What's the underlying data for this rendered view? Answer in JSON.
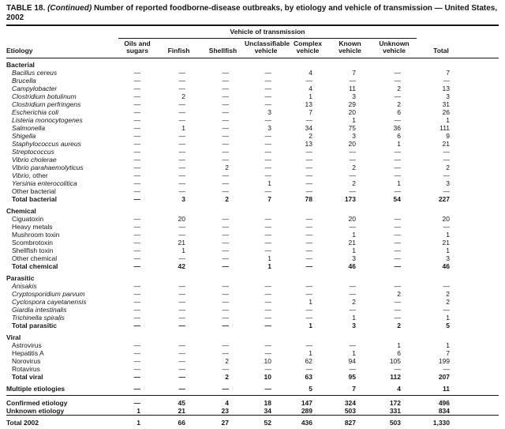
{
  "colors": {
    "text": "#161616",
    "background": "#ffffff",
    "rule": "#161616"
  },
  "title": {
    "part1": "TABLE 18.",
    "continued": "(Continued)",
    "part2": "Number of reported foodborne-disease outbreaks, by etiology and vehicle of transmission — United States, 2002"
  },
  "header": {
    "etiology": "Etiology",
    "spanner": "Vehicle of transmission",
    "columns": [
      "Oils and sugars",
      "Finfish",
      "Shellfish",
      "Unclassifiable vehicle",
      "Complex vehicle",
      "Known vehicle",
      "Unknown vehicle"
    ],
    "total": "Total"
  },
  "table": {
    "rows": [
      {
        "type": "section",
        "text": "Bacterial"
      },
      {
        "type": "item",
        "italic": "Bacillus cereus",
        "values": [
          "—",
          "—",
          "—",
          "—",
          "4",
          "7",
          "—",
          "7"
        ]
      },
      {
        "type": "item",
        "italic": "Brucella",
        "values": [
          "—",
          "—",
          "—",
          "—",
          "—",
          "—",
          "—",
          "—"
        ]
      },
      {
        "type": "item",
        "italic": "Campylobacter",
        "values": [
          "—",
          "—",
          "—",
          "—",
          "4",
          "11",
          "2",
          "13"
        ]
      },
      {
        "type": "item",
        "italic": "Clostridium botulinum",
        "values": [
          "—",
          "2",
          "—",
          "—",
          "1",
          "3",
          "—",
          "3"
        ]
      },
      {
        "type": "item",
        "italic": "Clostridium perfringens",
        "values": [
          "—",
          "—",
          "—",
          "—",
          "13",
          "29",
          "2",
          "31"
        ]
      },
      {
        "type": "item",
        "italic": "Escherichia coli",
        "values": [
          "—",
          "—",
          "—",
          "3",
          "7",
          "20",
          "6",
          "26"
        ]
      },
      {
        "type": "item",
        "italic": "Listeria monocytogenes",
        "values": [
          "—",
          "—",
          "—",
          "—",
          "—",
          "1",
          "—",
          "1"
        ]
      },
      {
        "type": "item",
        "italic": "Salmonella",
        "values": [
          "—",
          "1",
          "—",
          "3",
          "34",
          "75",
          "36",
          "111"
        ]
      },
      {
        "type": "item",
        "italic": "Shigella",
        "values": [
          "—",
          "—",
          "—",
          "—",
          "2",
          "3",
          "6",
          "9"
        ]
      },
      {
        "type": "item",
        "italic": "Staphylococcus aureus",
        "values": [
          "—",
          "—",
          "—",
          "—",
          "13",
          "20",
          "1",
          "21"
        ]
      },
      {
        "type": "item",
        "italic": "Streptococcus",
        "values": [
          "—",
          "—",
          "—",
          "—",
          "—",
          "—",
          "—",
          "—"
        ]
      },
      {
        "type": "item",
        "italic": "Vibrio cholerae",
        "values": [
          "—",
          "—",
          "—",
          "—",
          "—",
          "—",
          "—",
          "—"
        ]
      },
      {
        "type": "item",
        "italic": "Vibrio parahaemolyticus",
        "values": [
          "—",
          "—",
          "2",
          "—",
          "—",
          "2",
          "—",
          "2"
        ]
      },
      {
        "type": "item",
        "italic": "Vibrio",
        "text": ", other",
        "values": [
          "—",
          "—",
          "—",
          "—",
          "—",
          "—",
          "—",
          "—"
        ]
      },
      {
        "type": "item",
        "italic": "Yersinia enterocolitica",
        "values": [
          "—",
          "—",
          "—",
          "1",
          "—",
          "2",
          "1",
          "3"
        ]
      },
      {
        "type": "item",
        "text": "Other bacterial",
        "values": [
          "—",
          "—",
          "—",
          "—",
          "—",
          "—",
          "—",
          "—"
        ]
      },
      {
        "type": "total",
        "text": "Total bacterial",
        "values": [
          "—",
          "3",
          "2",
          "7",
          "78",
          "173",
          "54",
          "227"
        ]
      },
      {
        "type": "section",
        "text": "Chemical",
        "gap_before": true
      },
      {
        "type": "item",
        "text": "Ciguatoxin",
        "values": [
          "—",
          "20",
          "—",
          "—",
          "—",
          "20",
          "—",
          "20"
        ]
      },
      {
        "type": "item",
        "text": "Heavy metals",
        "values": [
          "—",
          "—",
          "—",
          "—",
          "—",
          "—",
          "—",
          "—"
        ]
      },
      {
        "type": "item",
        "text": "Mushroom toxin",
        "values": [
          "—",
          "—",
          "—",
          "—",
          "—",
          "1",
          "—",
          "1"
        ]
      },
      {
        "type": "item",
        "text": "Scombrotoxin",
        "values": [
          "—",
          "21",
          "—",
          "—",
          "—",
          "21",
          "—",
          "21"
        ]
      },
      {
        "type": "item",
        "text": "Shellfish toxin",
        "values": [
          "—",
          "1",
          "—",
          "—",
          "—",
          "1",
          "—",
          "1"
        ]
      },
      {
        "type": "item",
        "text": "Other chemical",
        "values": [
          "—",
          "—",
          "—",
          "1",
          "—",
          "3",
          "—",
          "3"
        ]
      },
      {
        "type": "total",
        "text": "Total chemical",
        "values": [
          "—",
          "42",
          "—",
          "1",
          "—",
          "46",
          "—",
          "46"
        ]
      },
      {
        "type": "section",
        "text": "Parasitic",
        "gap_before": true
      },
      {
        "type": "item",
        "italic": "Anisakis",
        "values": [
          "—",
          "—",
          "—",
          "—",
          "—",
          "—",
          "—",
          "—"
        ]
      },
      {
        "type": "item",
        "italic": "Cryptosporidium parvum",
        "values": [
          "—",
          "—",
          "—",
          "—",
          "—",
          "—",
          "2",
          "2"
        ]
      },
      {
        "type": "item",
        "italic": "Cyclospora cayetanensis",
        "values": [
          "—",
          "—",
          "—",
          "—",
          "1",
          "2",
          "—",
          "2"
        ]
      },
      {
        "type": "item",
        "italic": "Giardia intestinalis",
        "values": [
          "—",
          "—",
          "—",
          "—",
          "—",
          "—",
          "—",
          "—"
        ]
      },
      {
        "type": "item",
        "italic": "Trichinella spiralis",
        "values": [
          "—",
          "—",
          "—",
          "—",
          "—",
          "1",
          "—",
          "1"
        ]
      },
      {
        "type": "total",
        "text": "Total parasitic",
        "values": [
          "—",
          "—",
          "—",
          "—",
          "1",
          "3",
          "2",
          "5"
        ]
      },
      {
        "type": "section",
        "text": "Viral",
        "gap_before": true
      },
      {
        "type": "item",
        "text": "Astrovirus",
        "values": [
          "—",
          "—",
          "—",
          "—",
          "—",
          "—",
          "1",
          "1"
        ]
      },
      {
        "type": "item",
        "text": "Hepatitis A",
        "values": [
          "—",
          "—",
          "—",
          "—",
          "1",
          "1",
          "6",
          "7"
        ]
      },
      {
        "type": "item",
        "text": "Norovirus",
        "values": [
          "—",
          "—",
          "2",
          "10",
          "62",
          "94",
          "105",
          "199"
        ]
      },
      {
        "type": "item",
        "text": "Rotavirus",
        "values": [
          "—",
          "—",
          "—",
          "—",
          "—",
          "—",
          "—",
          "—"
        ]
      },
      {
        "type": "total",
        "text": "Total viral",
        "values": [
          "—",
          "—",
          "2",
          "10",
          "63",
          "95",
          "112",
          "207"
        ]
      },
      {
        "type": "flush",
        "text": "Multiple etiologies",
        "gap_before": true,
        "pad_bottom": true,
        "values": [
          "—",
          "—",
          "—",
          "—",
          "5",
          "7",
          "4",
          "11"
        ]
      },
      {
        "type": "flush",
        "text": "Confirmed etiology",
        "rule_above": true,
        "values": [
          "—",
          "45",
          "4",
          "18",
          "147",
          "324",
          "172",
          "496"
        ]
      },
      {
        "type": "flush",
        "text": "Unknown etiology",
        "values": [
          "1",
          "21",
          "23",
          "34",
          "289",
          "503",
          "331",
          "834"
        ]
      },
      {
        "type": "flush",
        "text": "Total 2002",
        "rule_above": true,
        "pad_bottom": true,
        "values": [
          "1",
          "66",
          "27",
          "52",
          "436",
          "827",
          "503",
          "1,330"
        ]
      }
    ]
  }
}
